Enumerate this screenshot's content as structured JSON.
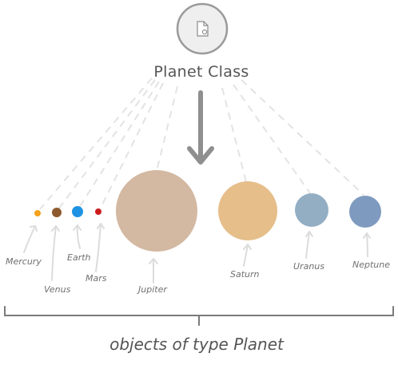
{
  "class_node": {
    "title": "Planet Class",
    "icon": "class-file-icon"
  },
  "planets": [
    {
      "key": "mercury",
      "label": "Mercury",
      "color": "#f5a11a"
    },
    {
      "key": "venus",
      "label": "Venus",
      "color": "#8d5a2f"
    },
    {
      "key": "earth",
      "label": "Earth",
      "color": "#1f93e3"
    },
    {
      "key": "mars",
      "label": "Mars",
      "color": "#cc1d1d"
    },
    {
      "key": "jupiter",
      "label": "Jupiter",
      "color": "#d3b8a2"
    },
    {
      "key": "saturn",
      "label": "Saturn",
      "color": "#e6be8a"
    },
    {
      "key": "uranus",
      "label": "Uranus",
      "color": "#93aec3"
    },
    {
      "key": "neptune",
      "label": "Neptune",
      "color": "#7e9abf"
    }
  ],
  "caption": "objects of type Planet",
  "colors": {
    "line": "#e3e3e3",
    "arrow": "#8f8f8f",
    "bracket": "#7a7a7a",
    "text": "#555555"
  }
}
